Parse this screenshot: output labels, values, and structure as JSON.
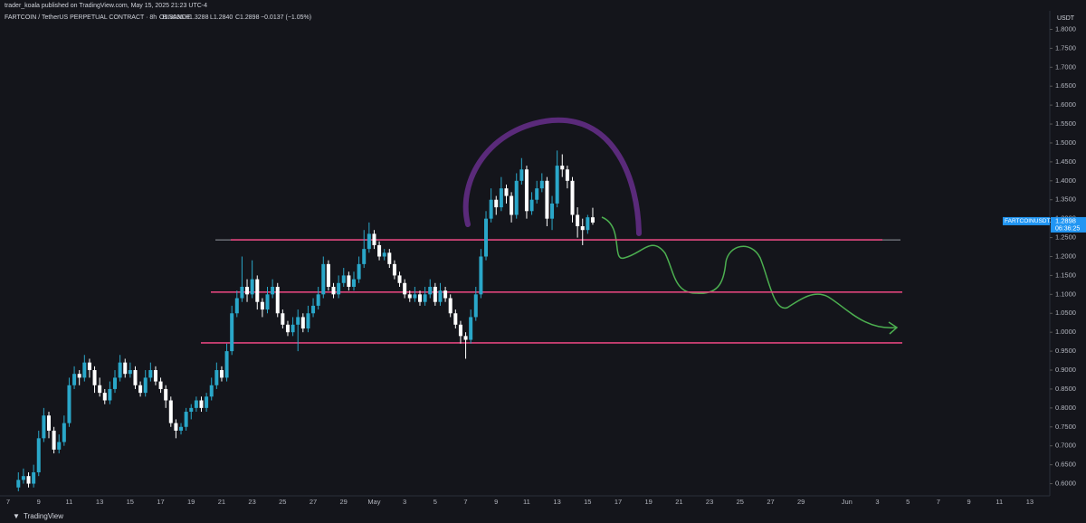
{
  "publisher": "trader_koala published on TradingView.com, May 15, 2025 21:23 UTC-4",
  "brand": "TradingView",
  "chart_data": {
    "type": "candlestick",
    "title": "FARTCOIN / TetherUS PERPETUAL CONTRACT · 8h · BINANCE",
    "ohlc": [
      "O1.3036",
      "H1.3288",
      "L1.2840",
      "C1.2898",
      "−0.0137 (−1.05%)"
    ],
    "currency": "USDT",
    "symbol_tag": "FARTCOINUSDT.P",
    "last_price": 1.2898,
    "countdown": "06:36:25",
    "up_color": "#2aa7c9",
    "down_color": "#ffffff",
    "ylim": [
      0.575,
      1.825
    ],
    "yticks": [
      {
        "value": 0.6,
        "label": "0.6000"
      },
      {
        "value": 0.65,
        "label": "0.6500"
      },
      {
        "value": 0.7,
        "label": "0.7000"
      },
      {
        "value": 0.75,
        "label": "0.7500"
      },
      {
        "value": 0.8,
        "label": "0.8000"
      },
      {
        "value": 0.85,
        "label": "0.8500"
      },
      {
        "value": 0.9,
        "label": "0.9000"
      },
      {
        "value": 0.95,
        "label": "0.9500"
      },
      {
        "value": 1.0,
        "label": "1.0000"
      },
      {
        "value": 1.05,
        "label": "1.0500"
      },
      {
        "value": 1.1,
        "label": "1.1000"
      },
      {
        "value": 1.15,
        "label": "1.1500"
      },
      {
        "value": 1.2,
        "label": "1.2000"
      },
      {
        "value": 1.25,
        "label": "1.2500"
      },
      {
        "value": 1.3,
        "label": "1.3000"
      },
      {
        "value": 1.35,
        "label": "1.3500"
      },
      {
        "value": 1.4,
        "label": "1.4000"
      },
      {
        "value": 1.45,
        "label": "1.4500"
      },
      {
        "value": 1.5,
        "label": "1.5000"
      },
      {
        "value": 1.55,
        "label": "1.5500"
      },
      {
        "value": 1.6,
        "label": "1.6000"
      },
      {
        "value": 1.65,
        "label": "1.6500"
      },
      {
        "value": 1.7,
        "label": "1.7000"
      },
      {
        "value": 1.75,
        "label": "1.7500"
      },
      {
        "value": 1.8,
        "label": "1.8000"
      }
    ],
    "xtick_labels": [
      "7",
      "9",
      "11",
      "13",
      "15",
      "17",
      "19",
      "21",
      "23",
      "25",
      "27",
      "29",
      "May",
      "3",
      "5",
      "7",
      "9",
      "11",
      "13",
      "15",
      "17",
      "19",
      "21",
      "23",
      "25",
      "27",
      "29",
      "Jun",
      "3",
      "5",
      "7",
      "9",
      "11",
      "13"
    ],
    "levels": [
      1.244,
      1.106,
      0.972
    ],
    "level_color": "#e0447c",
    "candles": [
      [
        0.59,
        0.63,
        0.58,
        0.61
      ],
      [
        0.61,
        0.64,
        0.6,
        0.62
      ],
      [
        0.62,
        0.63,
        0.59,
        0.6
      ],
      [
        0.6,
        0.65,
        0.59,
        0.63
      ],
      [
        0.63,
        0.74,
        0.62,
        0.72
      ],
      [
        0.72,
        0.8,
        0.71,
        0.78
      ],
      [
        0.78,
        0.79,
        0.72,
        0.74
      ],
      [
        0.74,
        0.75,
        0.68,
        0.69
      ],
      [
        0.69,
        0.73,
        0.68,
        0.71
      ],
      [
        0.71,
        0.78,
        0.7,
        0.76
      ],
      [
        0.76,
        0.88,
        0.75,
        0.86
      ],
      [
        0.86,
        0.91,
        0.85,
        0.89
      ],
      [
        0.89,
        0.9,
        0.86,
        0.88
      ],
      [
        0.88,
        0.94,
        0.87,
        0.92
      ],
      [
        0.92,
        0.93,
        0.88,
        0.9
      ],
      [
        0.9,
        0.91,
        0.84,
        0.86
      ],
      [
        0.86,
        0.88,
        0.83,
        0.84
      ],
      [
        0.84,
        0.85,
        0.81,
        0.82
      ],
      [
        0.82,
        0.87,
        0.81,
        0.85
      ],
      [
        0.85,
        0.9,
        0.84,
        0.88
      ],
      [
        0.88,
        0.94,
        0.87,
        0.92
      ],
      [
        0.92,
        0.93,
        0.88,
        0.89
      ],
      [
        0.89,
        0.92,
        0.88,
        0.9
      ],
      [
        0.9,
        0.91,
        0.85,
        0.86
      ],
      [
        0.86,
        0.87,
        0.83,
        0.84
      ],
      [
        0.84,
        0.9,
        0.83,
        0.88
      ],
      [
        0.88,
        0.92,
        0.87,
        0.9
      ],
      [
        0.9,
        0.91,
        0.86,
        0.87
      ],
      [
        0.87,
        0.88,
        0.84,
        0.85
      ],
      [
        0.85,
        0.86,
        0.8,
        0.82
      ],
      [
        0.82,
        0.83,
        0.75,
        0.76
      ],
      [
        0.76,
        0.77,
        0.72,
        0.74
      ],
      [
        0.74,
        0.76,
        0.73,
        0.75
      ],
      [
        0.75,
        0.8,
        0.74,
        0.79
      ],
      [
        0.79,
        0.81,
        0.77,
        0.8
      ],
      [
        0.8,
        0.83,
        0.79,
        0.82
      ],
      [
        0.82,
        0.83,
        0.79,
        0.8
      ],
      [
        0.8,
        0.84,
        0.79,
        0.83
      ],
      [
        0.83,
        0.88,
        0.82,
        0.86
      ],
      [
        0.86,
        0.92,
        0.85,
        0.9
      ],
      [
        0.9,
        0.91,
        0.87,
        0.88
      ],
      [
        0.88,
        0.97,
        0.87,
        0.95
      ],
      [
        0.95,
        1.07,
        0.94,
        1.05
      ],
      [
        1.05,
        1.11,
        1.04,
        1.09
      ],
      [
        1.09,
        1.2,
        1.08,
        1.12
      ],
      [
        1.12,
        1.14,
        1.08,
        1.1
      ],
      [
        1.1,
        1.19,
        1.09,
        1.14
      ],
      [
        1.14,
        1.15,
        1.06,
        1.08
      ],
      [
        1.08,
        1.09,
        1.04,
        1.06
      ],
      [
        1.06,
        1.12,
        1.05,
        1.1
      ],
      [
        1.1,
        1.14,
        1.09,
        1.12
      ],
      [
        1.12,
        1.13,
        1.04,
        1.05
      ],
      [
        1.05,
        1.06,
        1.01,
        1.02
      ],
      [
        1.02,
        1.03,
        0.99,
        1.0
      ],
      [
        1.0,
        1.04,
        0.99,
        1.02
      ],
      [
        1.02,
        1.06,
        0.95,
        1.04
      ],
      [
        1.04,
        1.05,
        1.0,
        1.01
      ],
      [
        1.01,
        1.07,
        1.0,
        1.05
      ],
      [
        1.05,
        1.09,
        1.04,
        1.07
      ],
      [
        1.07,
        1.12,
        1.06,
        1.1
      ],
      [
        1.1,
        1.2,
        1.09,
        1.18
      ],
      [
        1.18,
        1.19,
        1.11,
        1.12
      ],
      [
        1.12,
        1.13,
        1.09,
        1.1
      ],
      [
        1.1,
        1.15,
        1.09,
        1.13
      ],
      [
        1.13,
        1.17,
        1.12,
        1.15
      ],
      [
        1.15,
        1.16,
        1.11,
        1.12
      ],
      [
        1.12,
        1.16,
        1.11,
        1.14
      ],
      [
        1.14,
        1.2,
        1.13,
        1.18
      ],
      [
        1.18,
        1.27,
        1.17,
        1.22
      ],
      [
        1.22,
        1.29,
        1.21,
        1.26
      ],
      [
        1.26,
        1.27,
        1.22,
        1.23
      ],
      [
        1.23,
        1.24,
        1.19,
        1.2
      ],
      [
        1.2,
        1.22,
        1.19,
        1.21
      ],
      [
        1.21,
        1.22,
        1.17,
        1.18
      ],
      [
        1.18,
        1.19,
        1.14,
        1.15
      ],
      [
        1.15,
        1.16,
        1.12,
        1.13
      ],
      [
        1.13,
        1.14,
        1.09,
        1.1
      ],
      [
        1.1,
        1.11,
        1.08,
        1.09
      ],
      [
        1.09,
        1.12,
        1.08,
        1.1
      ],
      [
        1.1,
        1.11,
        1.07,
        1.08
      ],
      [
        1.08,
        1.12,
        1.07,
        1.1
      ],
      [
        1.1,
        1.14,
        1.09,
        1.12
      ],
      [
        1.12,
        1.13,
        1.07,
        1.08
      ],
      [
        1.08,
        1.13,
        1.07,
        1.11
      ],
      [
        1.11,
        1.12,
        1.08,
        1.09
      ],
      [
        1.09,
        1.1,
        1.04,
        1.05
      ],
      [
        1.05,
        1.06,
        1.01,
        1.02
      ],
      [
        1.02,
        1.03,
        0.97,
        0.99
      ],
      [
        0.99,
        1.0,
        0.93,
        0.98
      ],
      [
        0.98,
        1.06,
        0.97,
        1.04
      ],
      [
        1.04,
        1.12,
        1.03,
        1.1
      ],
      [
        1.1,
        1.22,
        1.09,
        1.2
      ],
      [
        1.2,
        1.32,
        1.19,
        1.3
      ],
      [
        1.3,
        1.38,
        1.29,
        1.35
      ],
      [
        1.35,
        1.36,
        1.31,
        1.33
      ],
      [
        1.33,
        1.41,
        1.32,
        1.38
      ],
      [
        1.38,
        1.39,
        1.34,
        1.36
      ],
      [
        1.36,
        1.37,
        1.29,
        1.31
      ],
      [
        1.31,
        1.42,
        1.3,
        1.4
      ],
      [
        1.4,
        1.46,
        1.39,
        1.43
      ],
      [
        1.43,
        1.44,
        1.3,
        1.32
      ],
      [
        1.32,
        1.37,
        1.31,
        1.35
      ],
      [
        1.35,
        1.4,
        1.34,
        1.38
      ],
      [
        1.38,
        1.42,
        1.37,
        1.4
      ],
      [
        1.4,
        1.41,
        1.28,
        1.3
      ],
      [
        1.3,
        1.36,
        1.27,
        1.34
      ],
      [
        1.34,
        1.48,
        1.33,
        1.44
      ],
      [
        1.44,
        1.47,
        1.41,
        1.43
      ],
      [
        1.43,
        1.44,
        1.38,
        1.4
      ],
      [
        1.4,
        1.41,
        1.29,
        1.31
      ],
      [
        1.31,
        1.33,
        1.25,
        1.28
      ],
      [
        1.28,
        1.3,
        1.23,
        1.27
      ],
      [
        1.27,
        1.31,
        1.26,
        1.3036
      ],
      [
        1.3036,
        1.3288,
        1.284,
        1.2898
      ]
    ]
  }
}
